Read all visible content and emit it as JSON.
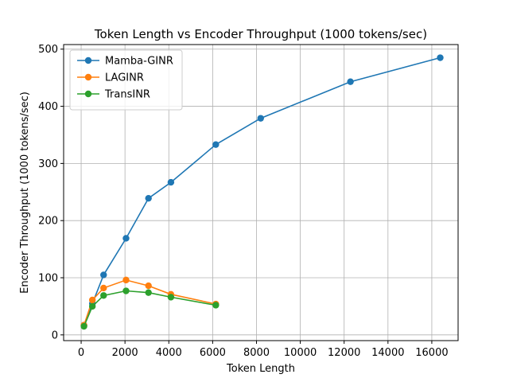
{
  "chart_data": {
    "type": "line",
    "title": "Token Length vs Encoder Throughput (1000 tokens/sec)",
    "xlabel": "Token Length",
    "ylabel": "Encoder Throughput (1000 tokens/sec)",
    "xlim": [
      -800,
      17200
    ],
    "ylim": [
      -10,
      508
    ],
    "xticks": [
      0,
      2000,
      4000,
      6000,
      8000,
      10000,
      12000,
      14000,
      16000
    ],
    "yticks": [
      0,
      100,
      200,
      300,
      400,
      500
    ],
    "grid": true,
    "legend_position": "top-left",
    "series": [
      {
        "name": "Mamba-GINR",
        "color": "#1f77b4",
        "x": [
          128,
          512,
          1024,
          2048,
          3072,
          4096,
          6144,
          8192,
          12288,
          16384
        ],
        "y": [
          17,
          55,
          105,
          169,
          239,
          267,
          333,
          379,
          443,
          485
        ]
      },
      {
        "name": "LAGINR",
        "color": "#ff7f0e",
        "x": [
          128,
          512,
          1024,
          2048,
          3072,
          4096,
          6144
        ],
        "y": [
          17,
          61,
          82,
          96,
          86,
          71,
          54
        ]
      },
      {
        "name": "TransINR",
        "color": "#2ca02c",
        "x": [
          128,
          512,
          1024,
          2048,
          3072,
          4096,
          6144
        ],
        "y": [
          15,
          50,
          69,
          77,
          74,
          66,
          52
        ]
      }
    ]
  }
}
